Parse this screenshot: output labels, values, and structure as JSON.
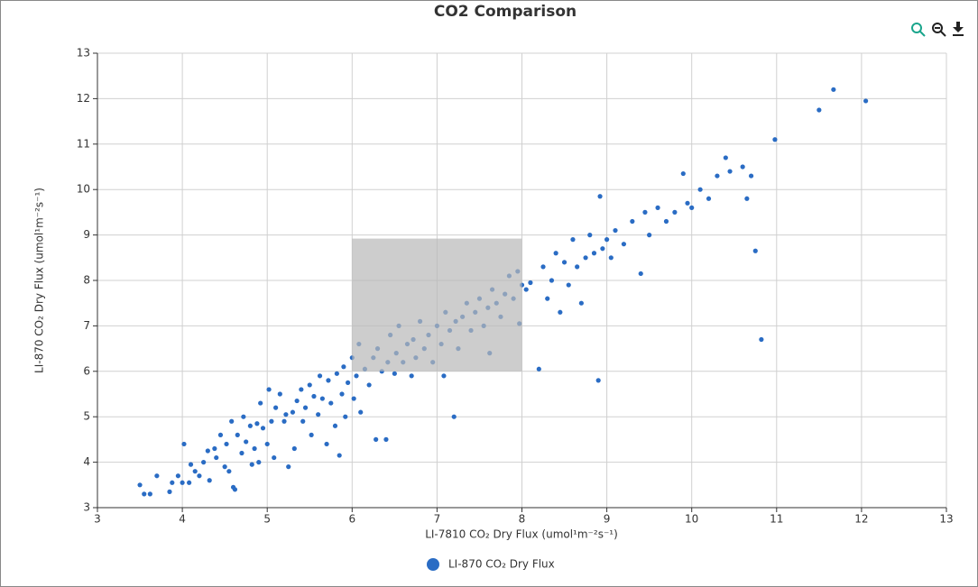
{
  "chart_data": {
    "type": "scatter",
    "title": "CO2 Comparison",
    "xlabel": "LI-7810 CO₂ Dry Flux (umol¹m⁻²s⁻¹)",
    "ylabel": "LI-870 CO₂ Dry Flux (umol¹m⁻²s⁻¹)",
    "xlim": [
      3,
      13
    ],
    "ylim": [
      3,
      13
    ],
    "xticks": [
      3,
      4,
      5,
      6,
      7,
      8,
      9,
      10,
      11,
      12,
      13
    ],
    "yticks": [
      3,
      4,
      5,
      6,
      7,
      8,
      9,
      10,
      11,
      12,
      13
    ],
    "grid": true,
    "legend": "bottom",
    "series": [
      {
        "name": "LI-870 CO₂ Dry Flux",
        "color": "#2a6cc4",
        "x": [
          3.5,
          3.55,
          3.62,
          3.7,
          3.85,
          3.88,
          3.95,
          4.0,
          4.02,
          4.08,
          4.1,
          4.15,
          4.2,
          4.25,
          4.3,
          4.32,
          4.38,
          4.4,
          4.45,
          4.5,
          4.52,
          4.55,
          4.58,
          4.6,
          4.62,
          4.65,
          4.7,
          4.72,
          4.75,
          4.8,
          4.82,
          4.85,
          4.88,
          4.9,
          4.92,
          4.95,
          5.0,
          5.02,
          5.05,
          5.08,
          5.1,
          5.15,
          5.2,
          5.22,
          5.25,
          5.3,
          5.32,
          5.35,
          5.4,
          5.42,
          5.45,
          5.5,
          5.52,
          5.55,
          5.6,
          5.62,
          5.65,
          5.7,
          5.72,
          5.75,
          5.8,
          5.82,
          5.85,
          5.88,
          5.9,
          5.92,
          5.95,
          6.0,
          6.02,
          6.05,
          6.08,
          6.1,
          6.15,
          6.2,
          6.25,
          6.28,
          6.3,
          6.35,
          6.4,
          6.42,
          6.45,
          6.5,
          6.52,
          6.55,
          6.6,
          6.65,
          6.7,
          6.72,
          6.75,
          6.8,
          6.85,
          6.9,
          6.95,
          7.0,
          7.05,
          7.08,
          7.1,
          7.15,
          7.2,
          7.22,
          7.25,
          7.3,
          7.35,
          7.4,
          7.45,
          7.5,
          7.55,
          7.6,
          7.62,
          7.65,
          7.7,
          7.75,
          7.8,
          7.85,
          7.9,
          7.95,
          7.97,
          8.0,
          8.05,
          8.1,
          8.2,
          8.25,
          8.3,
          8.35,
          8.4,
          8.45,
          8.5,
          8.55,
          8.6,
          8.65,
          8.7,
          8.75,
          8.8,
          8.85,
          8.9,
          8.92,
          8.95,
          9.0,
          9.05,
          9.1,
          9.2,
          9.3,
          9.4,
          9.45,
          9.5,
          9.6,
          9.7,
          9.8,
          9.9,
          9.95,
          10.0,
          10.1,
          10.2,
          10.3,
          10.4,
          10.45,
          10.6,
          10.65,
          10.7,
          10.75,
          10.82,
          10.98,
          11.5,
          11.67,
          12.05
        ],
        "values": [
          3.5,
          3.3,
          3.3,
          3.7,
          3.35,
          3.55,
          3.7,
          3.55,
          4.4,
          3.55,
          3.95,
          3.8,
          3.7,
          4.0,
          4.25,
          3.6,
          4.3,
          4.1,
          4.6,
          3.9,
          4.4,
          3.8,
          4.9,
          3.45,
          3.4,
          4.6,
          4.2,
          5.0,
          4.45,
          4.8,
          3.95,
          4.3,
          4.85,
          4.0,
          5.3,
          4.75,
          4.4,
          5.6,
          4.9,
          4.1,
          5.2,
          5.5,
          4.9,
          5.05,
          3.9,
          5.1,
          4.3,
          5.35,
          5.6,
          4.9,
          5.2,
          5.7,
          4.6,
          5.45,
          5.05,
          5.9,
          5.4,
          4.4,
          5.8,
          5.3,
          4.8,
          5.95,
          4.15,
          5.5,
          6.1,
          5.0,
          5.75,
          6.3,
          5.4,
          5.9,
          6.6,
          5.1,
          6.05,
          5.7,
          6.3,
          4.5,
          6.5,
          6.0,
          4.5,
          6.2,
          6.8,
          5.95,
          6.4,
          7.0,
          6.2,
          6.6,
          5.9,
          6.7,
          6.3,
          7.1,
          6.5,
          6.8,
          6.2,
          7.0,
          6.6,
          5.9,
          7.3,
          6.9,
          5.0,
          7.1,
          6.5,
          7.2,
          7.5,
          6.9,
          7.3,
          7.6,
          7.0,
          7.4,
          6.4,
          7.8,
          7.5,
          7.2,
          7.7,
          8.1,
          7.6,
          8.2,
          7.05,
          7.9,
          7.8,
          7.95,
          6.05,
          8.3,
          7.6,
          8.0,
          8.6,
          7.3,
          8.4,
          7.9,
          8.9,
          8.3,
          7.5,
          8.5,
          9.0,
          8.6,
          5.8,
          9.85,
          8.7,
          8.9,
          8.5,
          9.1,
          8.8,
          9.3,
          8.15,
          9.5,
          9.0,
          9.6,
          9.3,
          9.5,
          10.35,
          9.7,
          9.6,
          10.0,
          9.8,
          10.3,
          10.7,
          10.4,
          10.5,
          9.8,
          10.3,
          8.65,
          6.7,
          11.1,
          11.75,
          12.2,
          11.95
        ]
      }
    ]
  }
}
